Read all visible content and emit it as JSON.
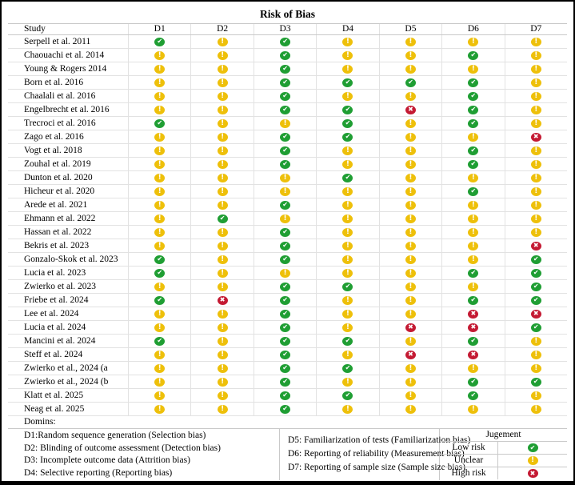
{
  "title": "Risk of Bias",
  "chart_data": {
    "type": "table",
    "title": "Risk of Bias",
    "columns": [
      "Study",
      "D1",
      "D2",
      "D3",
      "D4",
      "D5",
      "D6",
      "D7"
    ],
    "rating_legend": {
      "low": "Low risk",
      "unclear": "Unclear",
      "high": "High risk"
    },
    "rows": [
      {
        "study": "Serpell et al. 2011",
        "ratings": [
          "low",
          "unclear",
          "low",
          "unclear",
          "unclear",
          "unclear",
          "unclear"
        ]
      },
      {
        "study": "Chaouachi et al. 2014",
        "ratings": [
          "unclear",
          "unclear",
          "low",
          "unclear",
          "unclear",
          "low",
          "unclear"
        ]
      },
      {
        "study": "Young & Rogers 2014",
        "ratings": [
          "unclear",
          "unclear",
          "low",
          "unclear",
          "unclear",
          "unclear",
          "unclear"
        ]
      },
      {
        "study": "Born et al. 2016",
        "ratings": [
          "unclear",
          "unclear",
          "low",
          "low",
          "low",
          "low",
          "unclear"
        ]
      },
      {
        "study": "Chaalali et al. 2016",
        "ratings": [
          "unclear",
          "unclear",
          "low",
          "unclear",
          "unclear",
          "low",
          "unclear"
        ]
      },
      {
        "study": "Engelbrecht et al. 2016",
        "ratings": [
          "unclear",
          "unclear",
          "low",
          "low",
          "high",
          "low",
          "unclear"
        ]
      },
      {
        "study": "Trecroci et al. 2016",
        "ratings": [
          "low",
          "unclear",
          "unclear",
          "low",
          "unclear",
          "low",
          "unclear"
        ]
      },
      {
        "study": "Zago et al. 2016",
        "ratings": [
          "unclear",
          "unclear",
          "low",
          "low",
          "unclear",
          "unclear",
          "high"
        ]
      },
      {
        "study": "Vogt et al. 2018",
        "ratings": [
          "unclear",
          "unclear",
          "low",
          "unclear",
          "unclear",
          "low",
          "unclear"
        ]
      },
      {
        "study": "Zouhal et al. 2019",
        "ratings": [
          "unclear",
          "unclear",
          "low",
          "unclear",
          "unclear",
          "low",
          "unclear"
        ]
      },
      {
        "study": "Dunton et al. 2020",
        "ratings": [
          "unclear",
          "unclear",
          "unclear",
          "low",
          "unclear",
          "unclear",
          "unclear"
        ]
      },
      {
        "study": "Hicheur et al. 2020",
        "ratings": [
          "unclear",
          "unclear",
          "unclear",
          "unclear",
          "unclear",
          "low",
          "unclear"
        ]
      },
      {
        "study": "Arede et al. 2021",
        "ratings": [
          "unclear",
          "unclear",
          "low",
          "unclear",
          "unclear",
          "unclear",
          "unclear"
        ]
      },
      {
        "study": "Ehmann et al. 2022",
        "ratings": [
          "unclear",
          "low",
          "unclear",
          "unclear",
          "unclear",
          "unclear",
          "unclear"
        ]
      },
      {
        "study": "Hassan et al. 2022",
        "ratings": [
          "unclear",
          "unclear",
          "low",
          "unclear",
          "unclear",
          "unclear",
          "unclear"
        ]
      },
      {
        "study": "Bekris et al. 2023",
        "ratings": [
          "unclear",
          "unclear",
          "low",
          "unclear",
          "unclear",
          "unclear",
          "high"
        ]
      },
      {
        "study": "Gonzalo-Skok et al. 2023",
        "ratings": [
          "low",
          "unclear",
          "low",
          "unclear",
          "unclear",
          "unclear",
          "low"
        ]
      },
      {
        "study": "Lucia et al. 2023",
        "ratings": [
          "low",
          "unclear",
          "unclear",
          "unclear",
          "unclear",
          "low",
          "low"
        ]
      },
      {
        "study": "Zwierko et al. 2023",
        "ratings": [
          "unclear",
          "unclear",
          "low",
          "low",
          "unclear",
          "unclear",
          "low"
        ]
      },
      {
        "study": "Friebe et al. 2024",
        "ratings": [
          "low",
          "high",
          "low",
          "unclear",
          "unclear",
          "low",
          "low"
        ]
      },
      {
        "study": "Lee et al. 2024",
        "ratings": [
          "unclear",
          "unclear",
          "low",
          "unclear",
          "unclear",
          "high",
          "high"
        ]
      },
      {
        "study": "Lucia et al. 2024",
        "ratings": [
          "unclear",
          "unclear",
          "low",
          "unclear",
          "high",
          "high",
          "low"
        ]
      },
      {
        "study": "Mancini et al. 2024",
        "ratings": [
          "low",
          "unclear",
          "low",
          "low",
          "unclear",
          "low",
          "unclear"
        ]
      },
      {
        "study": "Steff et al. 2024",
        "ratings": [
          "unclear",
          "unclear",
          "low",
          "unclear",
          "high",
          "high",
          "unclear"
        ]
      },
      {
        "study": "Zwierko et al., 2024 (a",
        "ratings": [
          "unclear",
          "unclear",
          "low",
          "low",
          "unclear",
          "unclear",
          "unclear"
        ]
      },
      {
        "study": "Zwierko et al., 2024 (b",
        "ratings": [
          "unclear",
          "unclear",
          "low",
          "unclear",
          "unclear",
          "low",
          "low"
        ]
      },
      {
        "study": "Klatt et al. 2025",
        "ratings": [
          "unclear",
          "unclear",
          "low",
          "low",
          "unclear",
          "low",
          "unclear"
        ]
      },
      {
        "study": "Neag et al. 2025",
        "ratings": [
          "unclear",
          "unclear",
          "low",
          "unclear",
          "unclear",
          "unclear",
          "unclear"
        ]
      }
    ]
  },
  "footer": {
    "domains_label": "Domins:",
    "definitions_left": [
      "D1:Random sequence generation (Selection bias)",
      "D2: Blinding of outcome assessment (Detection bias)",
      "D3: Incomplete outcome data (Attrition bias)",
      "D4: Selective reporting (Reporting bias)"
    ],
    "definitions_right": [
      "D5: Familiarization of tests (Familiarization bias)",
      "D6: Reporting of reliability (Measurement bias)",
      "D7: Reporting of sample size (Sample size bias)"
    ],
    "legend": {
      "header": "Jugement",
      "items": [
        {
          "label": "Low risk",
          "rating": "low"
        },
        {
          "label": "Unclear",
          "rating": "unclear"
        },
        {
          "label": "High risk",
          "rating": "high"
        }
      ]
    }
  },
  "icons": {
    "low": {
      "name": "check-icon",
      "glyph": "✔"
    },
    "unclear": {
      "name": "exclamation-icon",
      "glyph": "!"
    },
    "high": {
      "name": "cross-icon",
      "glyph": "✖"
    }
  },
  "colors": {
    "low": "#1f9e33",
    "unclear": "#eec00a",
    "high": "#c41a33"
  }
}
